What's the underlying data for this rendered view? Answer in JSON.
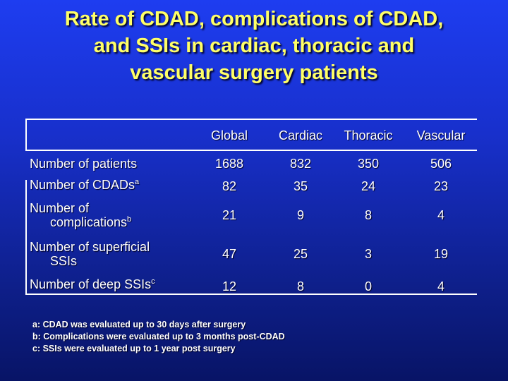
{
  "title": {
    "line1": "Rate of CDAD, complications of CDAD,",
    "line2": "and SSIs in cardiac, thoracic and",
    "line3": "vascular surgery patients"
  },
  "table": {
    "columns": [
      "Global",
      "Cardiac",
      "Thoracic",
      "Vascular"
    ],
    "rows": [
      {
        "label": "Number of patients",
        "sup": "",
        "values": [
          "1688",
          "832",
          "350",
          "506"
        ]
      },
      {
        "label": "Number of CDADs",
        "sup": "a",
        "values": [
          "82",
          "35",
          "24",
          "23"
        ]
      },
      {
        "label_line1": "Number of",
        "label_line2": "complications",
        "sup": "b",
        "values": [
          "21",
          "9",
          "8",
          "4"
        ]
      },
      {
        "label_line1": "Number of superficial",
        "label_line2": "SSIs",
        "sup": "",
        "values": [
          "47",
          "25",
          "3",
          "19"
        ]
      },
      {
        "label": "Number of deep SSIs",
        "sup": "c",
        "values": [
          "12",
          "8",
          "0",
          "4"
        ]
      }
    ]
  },
  "footnotes": [
    "a: CDAD was evaluated up to 30 days after surgery",
    "b: Complications were evaluated up to 3 months post-CDAD",
    "c: SSIs were evaluated up to 1 year post surgery"
  ],
  "colors": {
    "title": "#ffff66",
    "text": "#ffffff",
    "background": "#1830cc"
  }
}
